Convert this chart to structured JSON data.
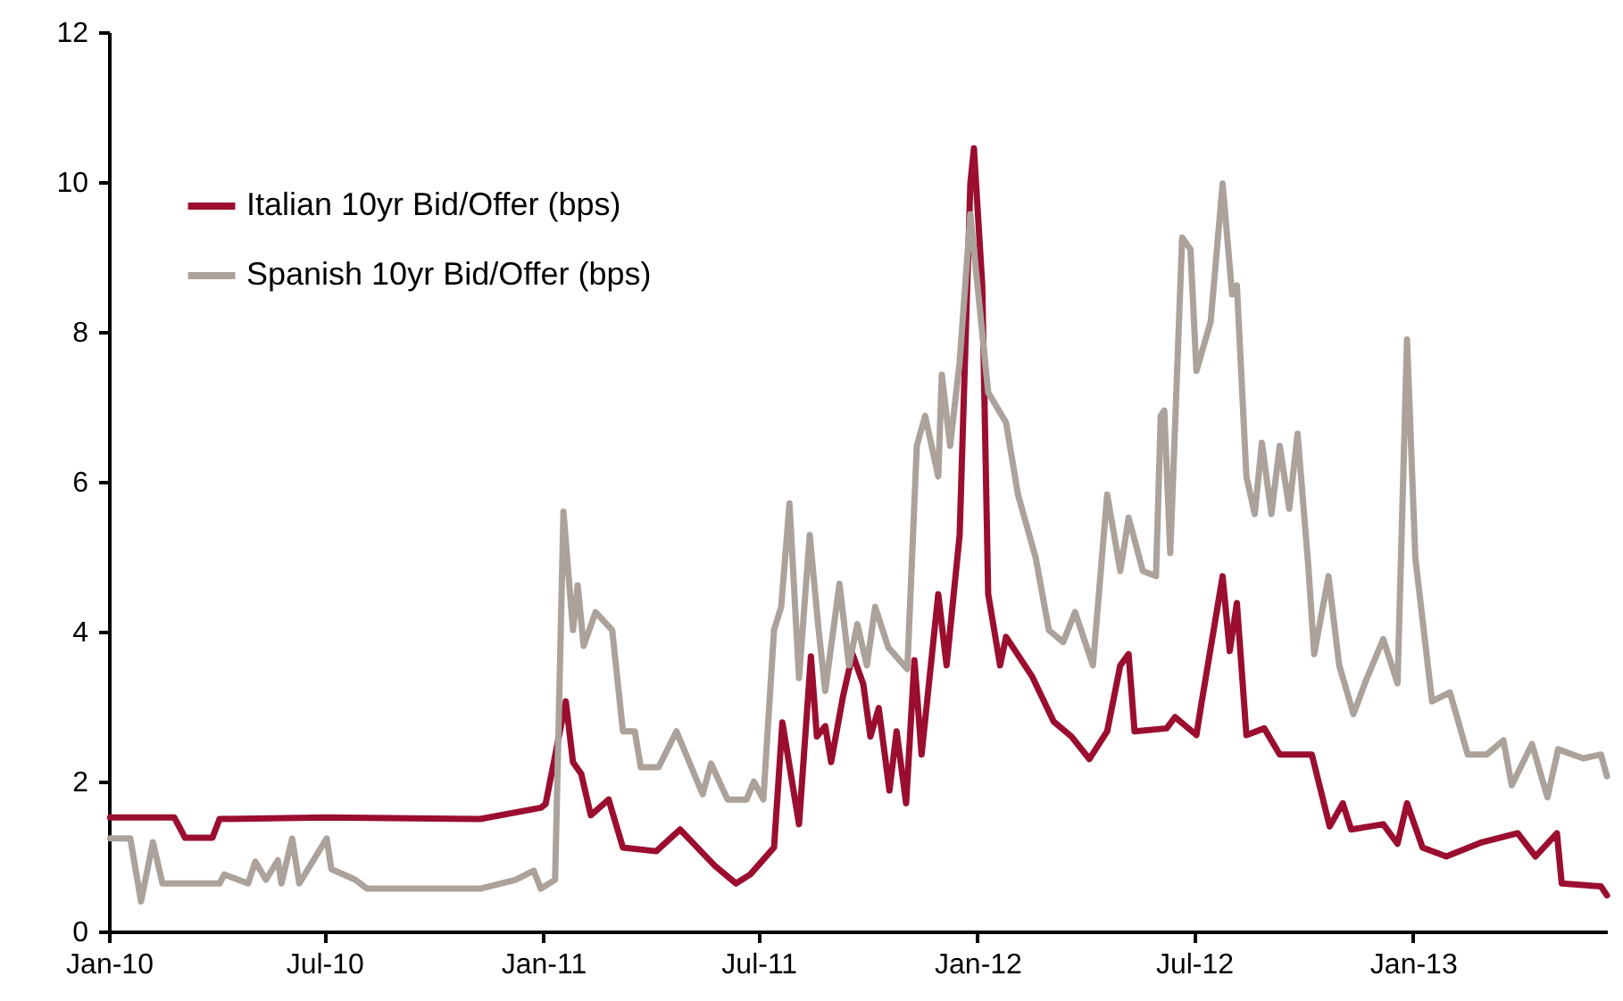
{
  "chart_data": {
    "type": "line",
    "xlim": [
      "2010-01-01",
      "2013-06-13"
    ],
    "xticks": [
      {
        "value": "2010-01-01",
        "label": "Jan-10"
      },
      {
        "value": "2010-07-01",
        "label": "Jul-10"
      },
      {
        "value": "2011-01-01",
        "label": "Jan-11"
      },
      {
        "value": "2011-07-01",
        "label": "Jul-11"
      },
      {
        "value": "2012-01-01",
        "label": "Jan-12"
      },
      {
        "value": "2012-07-01",
        "label": "Jul-12"
      },
      {
        "value": "2013-01-01",
        "label": "Jan-13"
      }
    ],
    "ylim": [
      0,
      12
    ],
    "yticks": [
      0,
      2,
      4,
      6,
      8,
      10,
      12
    ],
    "grid": false,
    "legend": "top left",
    "line_style": "solid",
    "marker": "none",
    "series": [
      {
        "name": "Italian 10yr Bid/Offer (bps)",
        "color": "#9b0e2f",
        "x": [
          "2010-01-02",
          "2010-02-25",
          "2010-03-06",
          "2010-03-29",
          "2010-04-04",
          "2010-07-03",
          "2010-11-09",
          "2010-12-30",
          "2011-01-03",
          "2011-01-20",
          "2011-01-26",
          "2011-02-02",
          "2011-02-10",
          "2011-02-25",
          "2011-03-09",
          "2011-04-06",
          "2011-04-26",
          "2011-05-25",
          "2011-06-12",
          "2011-06-24",
          "2011-07-14",
          "2011-07-21",
          "2011-08-04",
          "2011-08-14",
          "2011-08-19",
          "2011-08-26",
          "2011-08-31",
          "2011-09-10",
          "2011-09-18",
          "2011-09-27",
          "2011-10-03",
          "2011-10-10",
          "2011-10-19",
          "2011-10-25",
          "2011-11-02",
          "2011-11-09",
          "2011-11-15",
          "2011-11-29",
          "2011-12-06",
          "2011-12-17",
          "2011-12-26",
          "2011-12-29",
          "2012-01-05",
          "2012-01-10",
          "2012-01-20",
          "2012-01-25",
          "2012-02-16",
          "2012-03-05",
          "2012-03-20",
          "2012-04-04",
          "2012-04-19",
          "2012-04-30",
          "2012-05-07",
          "2012-05-12",
          "2012-06-08",
          "2012-06-15",
          "2012-07-03",
          "2012-07-07",
          "2012-07-25",
          "2012-07-31",
          "2012-08-06",
          "2012-08-14",
          "2012-08-29",
          "2012-09-11",
          "2012-10-08",
          "2012-10-23",
          "2012-11-03",
          "2012-11-10",
          "2012-12-07",
          "2012-12-19",
          "2012-12-27",
          "2013-01-09",
          "2013-01-29",
          "2013-02-28",
          "2013-03-30",
          "2013-04-14",
          "2013-05-02",
          "2013-05-06",
          "2013-06-08",
          "2013-06-13"
        ],
        "values": [
          1.52,
          1.52,
          1.25,
          1.25,
          1.5,
          1.52,
          1.5,
          1.65,
          1.7,
          3.07,
          2.26,
          2.1,
          1.55,
          1.76,
          1.12,
          1.07,
          1.36,
          0.88,
          0.64,
          0.76,
          1.12,
          2.79,
          1.43,
          3.67,
          2.6,
          2.74,
          2.26,
          3.14,
          3.7,
          3.3,
          2.6,
          2.98,
          1.88,
          2.67,
          1.71,
          3.62,
          2.36,
          4.5,
          3.55,
          5.29,
          9.98,
          10.45,
          8.62,
          4.5,
          3.55,
          3.93,
          3.4,
          2.8,
          2.6,
          2.3,
          2.67,
          3.55,
          3.7,
          2.67,
          2.71,
          2.86,
          2.62,
          3.02,
          4.74,
          3.74,
          4.38,
          2.62,
          2.71,
          2.36,
          2.36,
          1.4,
          1.71,
          1.36,
          1.43,
          1.17,
          1.71,
          1.12,
          1.0,
          1.19,
          1.31,
          1.0,
          1.31,
          0.64,
          0.6,
          0.48
        ]
      },
      {
        "name": "Spanish 10yr Bid/Offer (bps)",
        "color": "#aaa29b",
        "x": [
          "2010-01-02",
          "2010-01-19",
          "2010-01-28",
          "2010-02-07",
          "2010-02-15",
          "2010-04-04",
          "2010-04-08",
          "2010-04-28",
          "2010-05-04",
          "2010-05-13",
          "2010-05-23",
          "2010-05-26",
          "2010-06-04",
          "2010-06-10",
          "2010-07-03",
          "2010-07-07",
          "2010-07-27",
          "2010-08-06",
          "2010-11-09",
          "2010-12-09",
          "2010-12-24",
          "2010-12-30",
          "2011-01-11",
          "2011-01-18",
          "2011-01-26",
          "2011-01-30",
          "2011-02-04",
          "2011-02-14",
          "2011-02-28",
          "2011-03-09",
          "2011-03-19",
          "2011-03-24",
          "2011-04-08",
          "2011-04-23",
          "2011-05-15",
          "2011-05-22",
          "2011-06-05",
          "2011-06-21",
          "2011-06-27",
          "2011-07-05",
          "2011-07-14",
          "2011-07-20",
          "2011-07-27",
          "2011-08-04",
          "2011-08-13",
          "2011-08-20",
          "2011-08-26",
          "2011-09-07",
          "2011-09-15",
          "2011-09-22",
          "2011-09-30",
          "2011-10-07",
          "2011-10-18",
          "2011-11-03",
          "2011-11-11",
          "2011-11-18",
          "2011-11-29",
          "2011-12-02",
          "2011-12-09",
          "2011-12-17",
          "2011-12-26",
          "2012-01-10",
          "2012-01-25",
          "2012-02-04",
          "2012-02-19",
          "2012-03-01",
          "2012-03-13",
          "2012-03-23",
          "2012-04-07",
          "2012-04-19",
          "2012-04-30",
          "2012-05-07",
          "2012-05-19",
          "2012-05-30",
          "2012-06-03",
          "2012-06-06",
          "2012-06-11",
          "2012-06-21",
          "2012-06-28",
          "2012-07-03",
          "2012-07-15",
          "2012-07-25",
          "2012-08-02",
          "2012-08-06",
          "2012-08-14",
          "2012-08-21",
          "2012-08-27",
          "2012-09-04",
          "2012-09-11",
          "2012-09-19",
          "2012-09-26",
          "2012-10-05",
          "2012-10-10",
          "2012-10-22",
          "2012-10-31",
          "2012-11-12",
          "2012-11-22",
          "2012-12-07",
          "2012-12-19",
          "2012-12-27",
          "2013-01-03",
          "2013-01-17",
          "2013-02-01",
          "2013-02-16",
          "2013-03-04",
          "2013-03-18",
          "2013-03-25",
          "2013-04-11",
          "2013-04-24",
          "2013-05-03",
          "2013-05-24",
          "2013-06-08",
          "2013-06-13"
        ],
        "values": [
          1.24,
          1.24,
          0.4,
          1.19,
          0.64,
          0.64,
          0.76,
          0.64,
          0.93,
          0.69,
          0.95,
          0.64,
          1.24,
          0.64,
          1.24,
          0.83,
          0.69,
          0.57,
          0.57,
          0.69,
          0.81,
          0.57,
          0.69,
          5.6,
          4.02,
          4.62,
          3.81,
          4.26,
          4.02,
          2.67,
          2.67,
          2.19,
          2.19,
          2.67,
          1.83,
          2.24,
          1.76,
          1.76,
          2.0,
          1.76,
          4.02,
          4.33,
          5.71,
          3.38,
          5.29,
          4.1,
          3.21,
          4.64,
          3.55,
          4.1,
          3.55,
          4.33,
          3.79,
          3.5,
          6.48,
          6.88,
          6.07,
          7.43,
          6.48,
          7.6,
          9.57,
          7.19,
          6.79,
          5.83,
          4.98,
          4.02,
          3.86,
          4.26,
          3.55,
          5.83,
          4.81,
          5.52,
          4.81,
          4.74,
          6.88,
          6.95,
          5.05,
          9.26,
          9.1,
          7.48,
          8.14,
          9.98,
          8.5,
          8.62,
          6.07,
          5.57,
          6.52,
          5.57,
          6.48,
          5.64,
          6.64,
          4.88,
          3.7,
          4.74,
          3.55,
          2.9,
          3.33,
          3.9,
          3.31,
          7.9,
          4.98,
          3.07,
          3.19,
          2.36,
          2.36,
          2.55,
          1.95,
          2.5,
          1.79,
          2.43,
          2.31,
          2.36,
          2.07
        ]
      }
    ]
  }
}
